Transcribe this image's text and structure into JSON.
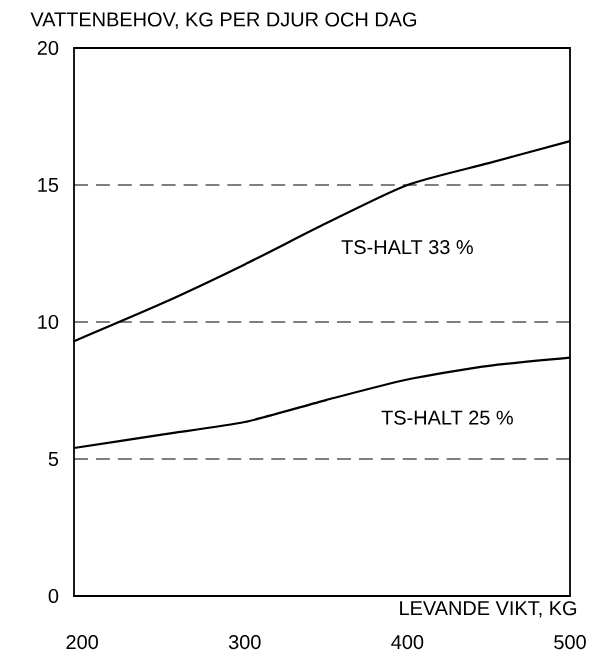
{
  "chart_data": {
    "type": "line",
    "ylabel": "VATTENBEHOV, KG PER DJUR OCH DAG",
    "xlabel": "LEVANDE VIKT, KG",
    "x": [
      195,
      250,
      300,
      350,
      400,
      450,
      500
    ],
    "series": [
      {
        "name": "TS-HALT 33 %",
        "color": "#000000",
        "values": [
          9.3,
          10.7,
          12.1,
          13.6,
          15.0,
          15.8,
          16.6
        ]
      },
      {
        "name": "TS-HALT 25 %",
        "color": "#000000",
        "values": [
          5.4,
          5.9,
          6.35,
          7.15,
          7.9,
          8.4,
          8.7
        ]
      }
    ],
    "xlim": [
      195,
      500
    ],
    "xticks": [
      200,
      300,
      400,
      500
    ],
    "ylim": [
      0,
      20
    ],
    "yticks": [
      0,
      5,
      10,
      15,
      20
    ],
    "grid": "y",
    "marker": "none",
    "line_style": "solid"
  }
}
